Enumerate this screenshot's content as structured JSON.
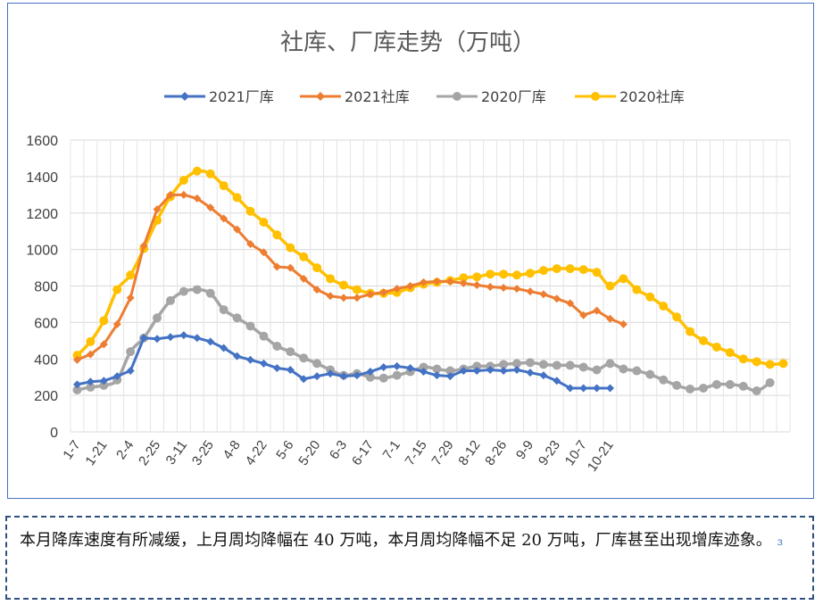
{
  "chart_data": {
    "type": "line",
    "title": "社库、厂库走势（万吨）",
    "ylim": [
      0,
      1600
    ],
    "yticks": [
      0,
      200,
      400,
      600,
      800,
      1000,
      1200,
      1400,
      1600
    ],
    "x_tick_labels": [
      "1-7",
      "1-21",
      "2-4",
      "2-25",
      "3-11",
      "3-25",
      "4-8",
      "4-22",
      "5-6",
      "5-20",
      "6-3",
      "6-17",
      "7-1",
      "7-15",
      "7-29",
      "8-12",
      "8-26",
      "9-9",
      "9-23",
      "10-7",
      "10-21"
    ],
    "grid": true,
    "legend_position": "top",
    "series": [
      {
        "name": "2021厂库",
        "color": "#4472c4",
        "marker": "diamond",
        "values": [
          260,
          275,
          280,
          305,
          335,
          515,
          510,
          520,
          530,
          515,
          495,
          460,
          415,
          395,
          375,
          350,
          340,
          290,
          305,
          320,
          305,
          310,
          330,
          355,
          360,
          350,
          330,
          310,
          305,
          335,
          335,
          340,
          335,
          340,
          325,
          310,
          280,
          240,
          240,
          240,
          240
        ]
      },
      {
        "name": "2021社库",
        "color": "#ed7d31",
        "marker": "diamond",
        "values": [
          395,
          425,
          480,
          590,
          735,
          1020,
          1220,
          1300,
          1300,
          1280,
          1230,
          1170,
          1110,
          1030,
          985,
          905,
          900,
          840,
          780,
          745,
          735,
          735,
          755,
          765,
          785,
          800,
          820,
          825,
          825,
          815,
          805,
          795,
          790,
          785,
          770,
          755,
          730,
          705,
          640,
          665,
          620,
          590
        ]
      },
      {
        "name": "2020厂库",
        "color": "#a5a5a5",
        "marker": "circle",
        "values": [
          230,
          245,
          255,
          285,
          440,
          515,
          625,
          720,
          770,
          780,
          760,
          670,
          625,
          580,
          525,
          470,
          440,
          405,
          375,
          340,
          310,
          320,
          300,
          295,
          310,
          330,
          355,
          345,
          335,
          345,
          360,
          360,
          370,
          375,
          380,
          370,
          365,
          365,
          355,
          340,
          375,
          345,
          335,
          315,
          285,
          255,
          235,
          240,
          260,
          260,
          250,
          225,
          270
        ]
      },
      {
        "name": "2020社库",
        "color": "#ffc000",
        "marker": "circle",
        "values": [
          420,
          495,
          610,
          780,
          860,
          1005,
          1160,
          1290,
          1380,
          1430,
          1415,
          1350,
          1285,
          1210,
          1150,
          1080,
          1010,
          960,
          900,
          840,
          805,
          780,
          760,
          760,
          765,
          790,
          810,
          820,
          830,
          845,
          850,
          865,
          865,
          860,
          870,
          885,
          895,
          895,
          890,
          875,
          800,
          840,
          780,
          740,
          690,
          630,
          550,
          500,
          465,
          435,
          400,
          385,
          370,
          375
        ]
      }
    ]
  },
  "note": {
    "text": "本月降库速度有所减缓，上月周均降幅在 40 万吨，本月周均降幅不足 20 万吨，厂库甚至出现增库迹象。",
    "mark": "ɜ"
  }
}
